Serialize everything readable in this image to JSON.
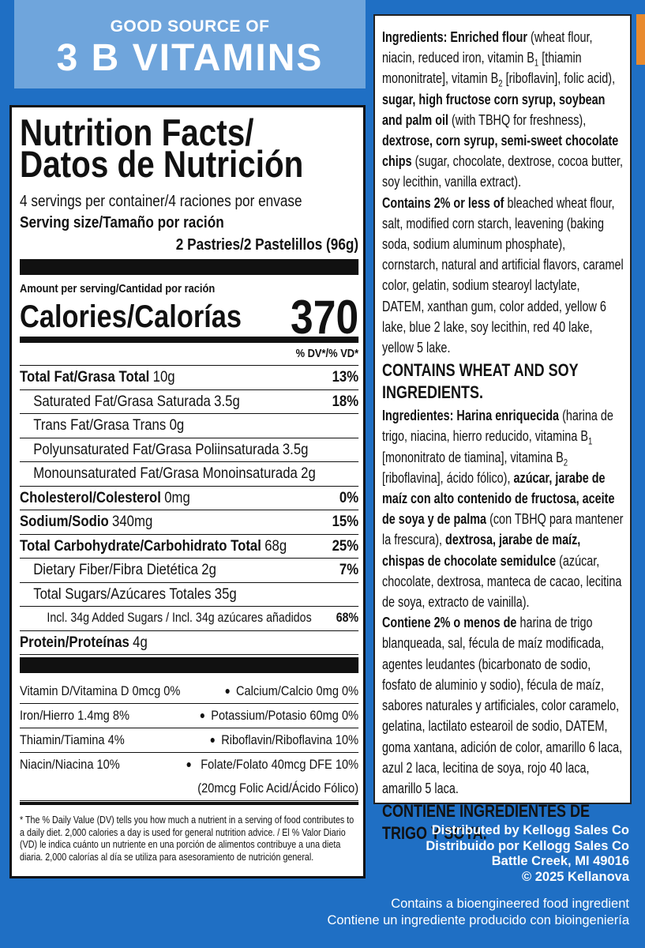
{
  "banner": {
    "line1": "GOOD SOURCE OF",
    "line2": "3 B VITAMINS"
  },
  "nutrition": {
    "title_line1": "Nutrition Facts/",
    "title_line2": "Datos de Nutrición",
    "servings": "4 servings per container/4 raciones por envase",
    "serving_size_label": "Serving size/Tamaño por ración",
    "serving_size_value": "2 Pastries/2 Pastelillos (96g)",
    "amount_per_serving": "Amount per serving/Cantidad por ración",
    "calories_label": "Calories/Calorías",
    "calories_value": 370,
    "dv_header": "% DV*/% VD*",
    "rows": [
      {
        "label": "Total Fat/Grasa Total",
        "amount": "10g",
        "dv": "13%"
      },
      {
        "label": "Saturated Fat/Grasa Saturada",
        "amount": "3.5g",
        "dv": "18%"
      },
      {
        "label": "Trans Fat/Grasa Trans",
        "amount": "0g"
      },
      {
        "label": "Polyunsaturated Fat/Grasa Poliinsaturada",
        "amount": "3.5g"
      },
      {
        "label": "Monounsaturated Fat/Grasa Monoinsaturada",
        "amount": "2g"
      },
      {
        "label": "Cholesterol/Colesterol",
        "amount": "0mg",
        "dv": "0%"
      },
      {
        "label": "Sodium/Sodio",
        "amount": "340mg",
        "dv": "15%"
      },
      {
        "label": "Total Carbohydrate/Carbohidrato Total",
        "amount": "68g",
        "dv": "25%"
      },
      {
        "label": "Dietary Fiber/Fibra Dietética",
        "amount": "2g",
        "dv": "7%"
      },
      {
        "label": "Total Sugars/Azúcares Totales",
        "amount": "35g"
      },
      {
        "label": "Incl. 34g Added Sugars / Incl. 34g azúcares añadidos",
        "dv": "68%"
      },
      {
        "label": "Protein/Proteínas",
        "amount": "4g"
      }
    ],
    "vitamins": [
      {
        "left": "Vitamin D/Vitamina D 0mcg 0%",
        "right": "Calcium/Calcio 0mg 0%"
      },
      {
        "left": "Iron/Hierro 1.4mg 8%",
        "right": "Potassium/Potasio 60mg 0%"
      },
      {
        "left": "Thiamin/Tiamina 4%",
        "right": "Riboflavin/Riboflavina 10%"
      },
      {
        "left": "Niacin/Niacina 10%",
        "right": "Folate/Folato 40mcg DFE 10%",
        "right_note": "(20mcg Folic Acid/Ácido Fólico)"
      }
    ],
    "footnote": "* The % Daily Value (DV) tells you how much a nutrient in a serving of food contributes to a daily diet. 2,000 calories a day is used for general nutrition advice. / El % Valor Diario (VD) le indica cuánto un nutriente en una porción de alimentos contribuye a una dieta diaria. 2,000 calorías al día se utiliza para asesoramiento de nutrición general."
  },
  "ingredients": {
    "english": [
      [
        {
          "text": "Ingredients: Enriched flour",
          "bold": true
        },
        {
          "text": " (wheat flour, niacin, reduced iron, vitamin B"
        },
        {
          "text": "1",
          "sub": true
        },
        {
          "text": " [thiamin mononitrate], vitamin B"
        },
        {
          "text": "2",
          "sub": true
        },
        {
          "text": " [riboflavin], folic acid), "
        },
        {
          "text": "sugar, high fructose corn syrup, soybean and palm oil",
          "bold": true
        },
        {
          "text": " (with TBHQ for freshness), "
        },
        {
          "text": "dextrose, corn syrup, semi-sweet chocolate chips",
          "bold": true
        },
        {
          "text": " (sugar, chocolate, dextrose, cocoa butter, soy lecithin, vanilla extract)."
        }
      ],
      [
        {
          "text": "Contains 2% or less of",
          "bold": true
        },
        {
          "text": " bleached wheat flour, salt, modified corn starch, leavening (baking soda, sodium aluminum phosphate), cornstarch, natural and artificial flavors, caramel color, gelatin, sodium stearoyl lactylate, DATEM, xanthan gum, color added, yellow 6 lake, blue 2 lake, soy lecithin, red 40 lake, yellow 5 lake."
        }
      ]
    ],
    "english_allergen": "CONTAINS WHEAT AND SOY INGREDIENTS.",
    "spanish": [
      [
        {
          "text": "Ingredientes: Harina enriquecida",
          "bold": true
        },
        {
          "text": " (harina de trigo, niacina, hierro reducido, vitamina B"
        },
        {
          "text": "1",
          "sub": true
        },
        {
          "text": " [mononitrato de tiamina], vitamina B"
        },
        {
          "text": "2",
          "sub": true
        },
        {
          "text": " [riboflavina], ácido fólico), "
        },
        {
          "text": "azúcar, jarabe de maíz con alto contenido de fructosa, aceite de soya y de palma",
          "bold": true
        },
        {
          "text": " (con TBHQ para mantener la frescura), "
        },
        {
          "text": "dextrosa, jarabe de maíz, chispas de chocolate semidulce",
          "bold": true
        },
        {
          "text": " (azúcar, chocolate, dextrosa, manteca de cacao, lecitina de soya, extracto de vainilla)."
        }
      ],
      [
        {
          "text": "Contiene 2% o menos de",
          "bold": true
        },
        {
          "text": " harina de trigo blanqueada, sal, fécula de maíz modificada, agentes leudantes (bicarbonato de sodio, fosfato de aluminio y sodio), fécula de maíz, sabores naturales y artificiales, color caramelo, gelatina, lactilato estearoil de sodio, DATEM, goma xantana, adición de color, amarillo 6 laca, azul 2 laca, lecitina de soya, rojo 40 laca, amarillo 5 laca."
        }
      ]
    ],
    "spanish_allergen": "CONTIENE INGREDIENTES DE TRIGO Y SOYA."
  },
  "distributor": [
    "Distributed by Kellogg Sales Co",
    "Distribuido por Kellogg Sales Co",
    "Battle Creek, MI 49016",
    "© 2025 Kellanova"
  ],
  "bioengineered": [
    "Contains a bioengineered food ingredient",
    "Contiene un ingrediente producido con bioingeniería"
  ]
}
